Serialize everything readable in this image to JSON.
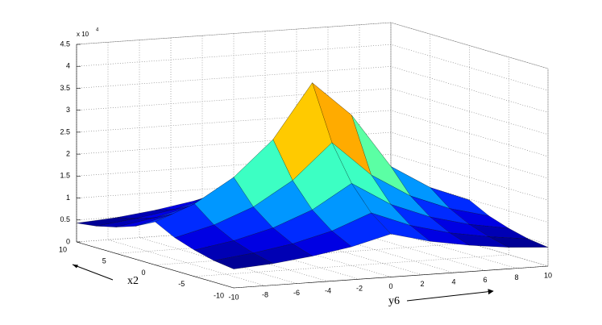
{
  "chart_data": {
    "type": "surface",
    "xlabel": "x2",
    "ylabel": "y6",
    "zexponent": {
      "base": "x 10",
      "power": "4"
    },
    "x": [
      -10,
      -7.5,
      -5,
      -2.5,
      0,
      2.5,
      5,
      7.5,
      10
    ],
    "y": [
      -10,
      -7.5,
      -5,
      -2.5,
      0,
      2.5,
      5,
      7.5,
      10
    ],
    "z": [
      [
        0.43,
        0.49,
        0.6,
        0.75,
        0.98,
        0.75,
        0.6,
        0.49,
        0.43
      ],
      [
        0.49,
        0.6,
        0.75,
        0.98,
        1.33,
        0.98,
        0.75,
        0.6,
        0.49
      ],
      [
        0.6,
        0.75,
        0.98,
        1.33,
        1.87,
        1.33,
        0.98,
        0.75,
        0.6
      ],
      [
        0.75,
        0.98,
        1.33,
        1.87,
        2.67,
        1.87,
        1.33,
        0.98,
        0.75
      ],
      [
        0.98,
        1.33,
        1.87,
        2.67,
        3.9,
        3.1,
        1.87,
        1.33,
        0.98
      ],
      [
        0.75,
        0.98,
        1.33,
        1.87,
        2.67,
        1.87,
        1.33,
        0.98,
        0.75
      ],
      [
        0.6,
        0.75,
        0.98,
        1.33,
        1.87,
        1.33,
        0.98,
        0.75,
        0.6
      ],
      [
        0.49,
        0.6,
        0.75,
        0.98,
        1.33,
        0.98,
        0.75,
        0.6,
        0.49
      ],
      [
        0.43,
        0.49,
        0.6,
        0.75,
        0.98,
        0.75,
        0.6,
        0.49,
        0.43
      ]
    ],
    "xlim": [
      -10,
      10
    ],
    "ylim": [
      -10,
      10
    ],
    "zlim": [
      0,
      4.5
    ],
    "xticks": [
      -10,
      -5,
      0,
      5,
      10
    ],
    "yticks": [
      -10,
      -8,
      -6,
      -4,
      -2,
      0,
      2,
      4,
      6,
      8,
      10
    ],
    "zticks": [
      0,
      0.5,
      1,
      1.5,
      2,
      2.5,
      3,
      3.5,
      4,
      4.5
    ],
    "grid": true,
    "colormap": "jet"
  }
}
